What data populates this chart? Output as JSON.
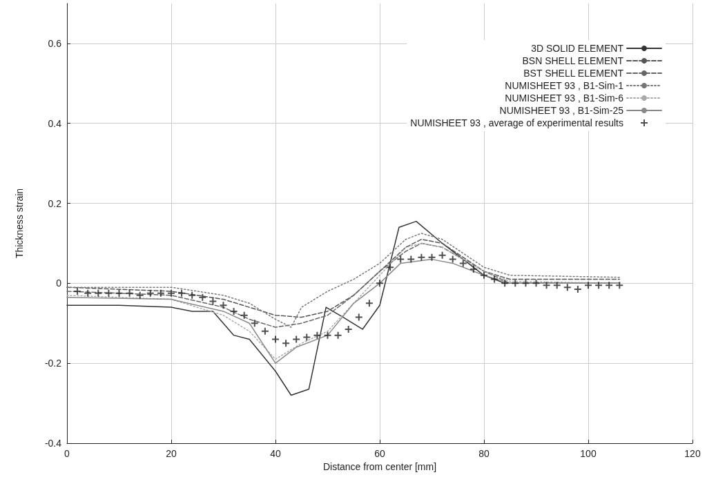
{
  "chart_data": {
    "type": "line",
    "xlabel": "Distance from center [mm]",
    "ylabel": "Thickness strain",
    "xlim": [
      0,
      120
    ],
    "xticks": [
      0,
      20,
      40,
      60,
      80,
      100,
      120
    ],
    "ylim": [
      -0.4,
      0.7
    ],
    "yticks": [
      -0.4,
      -0.2,
      0,
      0.2,
      0.4,
      0.6
    ],
    "grid": true,
    "legend": "top right",
    "marker": "none",
    "series": [
      {
        "name": "3D SOLID ELEMENT",
        "color": "#333333",
        "line_style": "solid",
        "x": [
          0,
          10,
          20,
          24,
          28,
          32,
          35,
          40,
          43,
          46.4,
          49.7,
          53,
          56.7,
          60,
          63.7,
          67,
          72,
          76,
          80,
          84,
          90,
          100,
          106
        ],
        "values": [
          -0.055,
          -0.055,
          -0.06,
          -0.07,
          -0.07,
          -0.13,
          -0.14,
          -0.22,
          -0.28,
          -0.265,
          -0.06,
          -0.085,
          -0.115,
          -0.055,
          0.14,
          0.155,
          0.1,
          0.06,
          0.02,
          0.0,
          0.0,
          0.0,
          0.0
        ]
      },
      {
        "name": "BSN SHELL ELEMENT",
        "color": "#555555",
        "line_style": "dashed",
        "x": [
          0,
          20,
          30,
          35,
          40,
          45,
          50,
          55,
          60,
          65,
          68,
          72,
          80,
          85,
          106
        ],
        "values": [
          -0.01,
          -0.02,
          -0.04,
          -0.06,
          -0.08,
          -0.085,
          -0.07,
          -0.03,
          0.03,
          0.09,
          0.11,
          0.1,
          0.03,
          0.01,
          0.01
        ]
      },
      {
        "name": "BST SHELL ELEMENT",
        "color": "#666666",
        "line_style": "dashed",
        "x": [
          0,
          20,
          30,
          35,
          40,
          45,
          50,
          55,
          60,
          65,
          68,
          72,
          80,
          85,
          106
        ],
        "values": [
          -0.02,
          -0.03,
          -0.06,
          -0.09,
          -0.11,
          -0.1,
          -0.08,
          -0.03,
          0.03,
          0.08,
          0.1,
          0.09,
          0.03,
          0.0,
          0.0
        ]
      },
      {
        "name": "NUMISHEET 93 , B1-Sim-1",
        "color": "#777777",
        "line_style": "dotted",
        "x": [
          0,
          20,
          30,
          35,
          40,
          43,
          45,
          50,
          55,
          60,
          65,
          68,
          72,
          80,
          85,
          106
        ],
        "values": [
          -0.01,
          -0.01,
          -0.03,
          -0.05,
          -0.09,
          -0.11,
          -0.06,
          -0.02,
          0.01,
          0.05,
          0.11,
          0.125,
          0.11,
          0.04,
          0.02,
          0.015
        ]
      },
      {
        "name": "NUMISHEET 93 , B1-Sim-6",
        "color": "#aaaaaa",
        "line_style": "dotted",
        "x": [
          0,
          20,
          30,
          35,
          40,
          45,
          50,
          55,
          60,
          65,
          68,
          72,
          80,
          85,
          106
        ],
        "values": [
          -0.03,
          -0.04,
          -0.08,
          -0.12,
          -0.19,
          -0.15,
          -0.12,
          -0.05,
          0.02,
          0.09,
          0.1,
          0.09,
          0.03,
          0.005,
          0.0
        ]
      },
      {
        "name": "NUMISHEET 93 , B1-Sim-25",
        "color": "#888888",
        "line_style": "solid",
        "x": [
          0,
          20,
          30,
          35,
          40,
          44,
          50,
          55,
          60,
          64,
          70,
          74,
          80,
          85,
          106
        ],
        "values": [
          -0.035,
          -0.04,
          -0.07,
          -0.1,
          -0.2,
          -0.16,
          -0.13,
          -0.05,
          0.0,
          0.05,
          0.06,
          0.05,
          0.02,
          0.0,
          0.0
        ]
      },
      {
        "name": "NUMISHEET 93 , average of experimental results",
        "type": "scatter",
        "marker": "cross",
        "color": "#222222",
        "x": [
          2,
          4,
          6,
          8,
          10,
          12,
          14,
          16,
          18,
          20,
          22,
          24,
          26,
          28,
          30,
          32,
          34,
          36,
          38,
          40,
          42,
          44,
          46,
          48,
          50,
          52,
          54,
          56,
          58,
          60,
          62,
          64,
          66,
          68,
          70,
          72,
          74,
          76,
          78,
          80,
          82,
          84,
          86,
          88,
          90,
          92,
          94,
          96,
          98,
          100,
          102,
          104,
          106
        ],
        "values": [
          -0.02,
          -0.025,
          -0.025,
          -0.025,
          -0.025,
          -0.025,
          -0.03,
          -0.025,
          -0.025,
          -0.025,
          -0.025,
          -0.03,
          -0.035,
          -0.045,
          -0.055,
          -0.07,
          -0.08,
          -0.1,
          -0.12,
          -0.14,
          -0.15,
          -0.14,
          -0.135,
          -0.13,
          -0.13,
          -0.13,
          -0.115,
          -0.085,
          -0.05,
          0.0,
          0.04,
          0.06,
          0.06,
          0.065,
          0.065,
          0.07,
          0.06,
          0.05,
          0.035,
          0.02,
          0.01,
          0.0,
          0.0,
          0.0,
          0.0,
          -0.005,
          -0.005,
          -0.01,
          -0.015,
          -0.005,
          -0.005,
          -0.005,
          -0.005
        ]
      }
    ]
  }
}
